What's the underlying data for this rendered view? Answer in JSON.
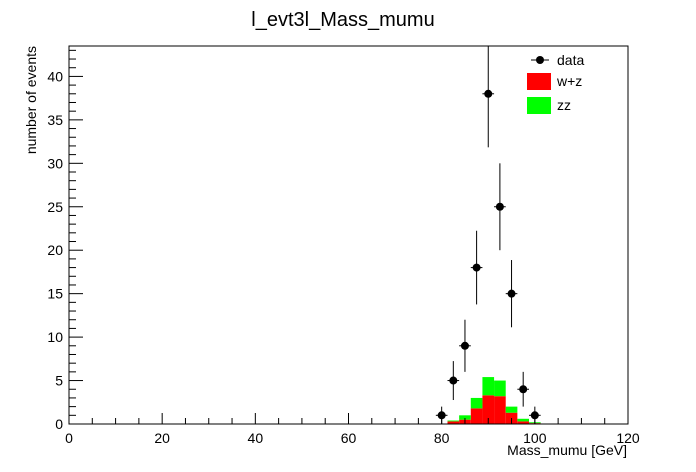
{
  "chart_data": {
    "type": "bar",
    "title": "l_evt3l_Mass_mumu",
    "xlabel": "Mass_mumu [GeV]",
    "ylabel": "number of events",
    "xlim": [
      0,
      120
    ],
    "ylim": [
      0,
      43.5
    ],
    "x_ticks": [
      0,
      20,
      40,
      60,
      80,
      100,
      120
    ],
    "y_ticks": [
      0,
      5,
      10,
      15,
      20,
      25,
      30,
      35,
      40
    ],
    "grid": false,
    "legend_position": "top-right",
    "bin_width": 2.5,
    "stacked": true,
    "series": [
      {
        "name": "w+z",
        "color": "#ff0000",
        "bins": [
          {
            "x": 82.5,
            "y": 0.3
          },
          {
            "x": 85.0,
            "y": 0.5
          },
          {
            "x": 87.5,
            "y": 1.8
          },
          {
            "x": 90.0,
            "y": 3.3
          },
          {
            "x": 92.5,
            "y": 3.2
          },
          {
            "x": 95.0,
            "y": 1.3
          },
          {
            "x": 97.5,
            "y": 0.3
          },
          {
            "x": 100.0,
            "y": 0.1
          }
        ]
      },
      {
        "name": "zz",
        "color": "#00ff00",
        "bins": [
          {
            "x": 82.5,
            "y": 0.1
          },
          {
            "x": 85.0,
            "y": 0.5
          },
          {
            "x": 87.5,
            "y": 1.2
          },
          {
            "x": 90.0,
            "y": 2.1
          },
          {
            "x": 92.5,
            "y": 1.8
          },
          {
            "x": 95.0,
            "y": 0.7
          },
          {
            "x": 97.5,
            "y": 0.3
          },
          {
            "x": 100.0,
            "y": 0.1
          }
        ]
      }
    ],
    "data_points": {
      "name": "data",
      "color": "#000000",
      "points": [
        {
          "x": 80.0,
          "y": 1,
          "err": 1.0
        },
        {
          "x": 82.5,
          "y": 5,
          "err": 2.24
        },
        {
          "x": 85.0,
          "y": 9,
          "err": 3.0
        },
        {
          "x": 87.5,
          "y": 18,
          "err": 4.24
        },
        {
          "x": 90.0,
          "y": 38,
          "err": 6.16
        },
        {
          "x": 92.5,
          "y": 25,
          "err": 5.0
        },
        {
          "x": 95.0,
          "y": 15,
          "err": 3.87
        },
        {
          "x": 97.5,
          "y": 4,
          "err": 2.0
        },
        {
          "x": 100.0,
          "y": 1,
          "err": 1.0
        }
      ]
    }
  }
}
